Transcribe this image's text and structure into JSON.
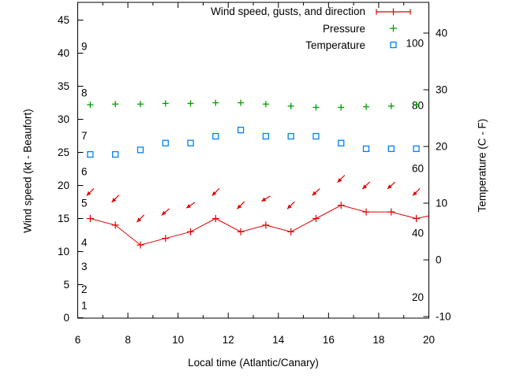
{
  "colors": {
    "wind": "#e00000",
    "pressure": "#00a000",
    "temperature": "#0080ff",
    "axis": "#000000",
    "background": "#ffffff"
  },
  "legend": {
    "items": [
      {
        "label": "Wind speed, gusts, and direction",
        "series": "wind",
        "marker": "errorbar-line"
      },
      {
        "label": "Pressure",
        "series": "pressure",
        "marker": "plus"
      },
      {
        "label": "Temperature",
        "series": "temperature",
        "marker": "square"
      }
    ]
  },
  "axes": {
    "x": {
      "label": "Local time (Atlantic/Canary)",
      "range": [
        6,
        20
      ],
      "major_ticks": [
        6,
        8,
        10,
        12,
        14,
        16,
        18,
        20
      ],
      "minor_ticks": [
        7,
        9,
        11,
        13,
        15,
        17,
        19
      ],
      "tick_labels": [
        "6",
        "8",
        "10",
        "12",
        "14",
        "16",
        "18",
        "20"
      ]
    },
    "y_left": {
      "label": "Wind speed (kt - Beaufort)",
      "major_ticks": [
        0,
        5,
        10,
        15,
        20,
        25,
        30,
        35,
        40,
        45
      ],
      "tick_labels": [
        "0",
        "5",
        "10",
        "15",
        "20",
        "25",
        "30",
        "35",
        "40",
        "45"
      ],
      "beaufort_inner_labels": [
        {
          "text": "1",
          "kt": 1.85
        },
        {
          "text": "2",
          "kt": 4.3
        },
        {
          "text": "3",
          "kt": 7.75
        },
        {
          "text": "4",
          "kt": 11.35
        },
        {
          "text": "5",
          "kt": 17.3
        },
        {
          "text": "6",
          "kt": 22.1
        },
        {
          "text": "7",
          "kt": 27.5
        },
        {
          "text": "8",
          "kt": 34.0
        },
        {
          "text": "9",
          "kt": 41.0
        }
      ]
    },
    "y_right": {
      "label": "Temperature (C - F)",
      "major_ticks_c": [
        -10,
        0,
        10,
        20,
        30,
        40
      ],
      "tick_labels": [
        "-10",
        "0",
        "10",
        "20",
        "30",
        "40"
      ],
      "fahrenheit_inner_labels": [
        {
          "text": "20",
          "c": -6.6
        },
        {
          "text": "40",
          "c": 4.7
        },
        {
          "text": "60",
          "c": 16.1
        },
        {
          "text": "80",
          "c": 27.2
        },
        {
          "text": "100",
          "c": 38.2
        }
      ]
    }
  },
  "chart_data": {
    "type": "line",
    "title": "",
    "xlabel": "Local time (Atlantic/Canary)",
    "ylabel_left": "Wind speed (kt - Beaufort)",
    "ylabel_right": "Temperature (C - F)",
    "x_range": [
      6,
      20
    ],
    "y_left_range_kt": [
      0,
      47.7
    ],
    "y_right_range_c": [
      -10.3,
      45.4
    ],
    "grid": false,
    "legend_position": "top-right-inside",
    "x": [
      6.5,
      7.5,
      8.5,
      9.5,
      10.5,
      11.5,
      12.5,
      13.5,
      14.5,
      15.5,
      16.5,
      17.5,
      18.5,
      19.5
    ],
    "series": [
      {
        "name": "Wind speed (kt)",
        "axis": "left",
        "style": "line-plus-markers",
        "values": [
          15,
          14,
          11,
          12,
          13,
          15,
          13,
          14,
          13,
          15,
          17,
          16,
          16,
          15
        ],
        "line_tail": {
          "x": 20,
          "value": 15.4
        }
      },
      {
        "name": "Wind gusts (kt, arrow positions)",
        "axis": "left",
        "style": "direction-arrows",
        "values": [
          19,
          18,
          15,
          16,
          17,
          19,
          17,
          18,
          17,
          19,
          21,
          20,
          20,
          19
        ]
      },
      {
        "name": "Wind direction (compass deg, from)",
        "values": [
          45,
          45,
          45,
          50,
          57,
          45,
          45,
          58,
          45,
          48,
          45,
          45,
          48,
          45
        ]
      },
      {
        "name": "Pressure (scale not shown, plotted level on left axis)",
        "axis": "left",
        "style": "plus-markers",
        "values": [
          32.2,
          32.3,
          32.3,
          32.4,
          32.4,
          32.5,
          32.5,
          32.3,
          32.0,
          31.8,
          31.8,
          31.9,
          32.0,
          32.2
        ]
      },
      {
        "name": "Temperature (C)",
        "axis": "right",
        "style": "open-square-markers",
        "values": [
          18.6,
          18.6,
          19.4,
          20.6,
          20.6,
          21.8,
          22.9,
          21.8,
          21.8,
          21.8,
          20.6,
          19.6,
          19.6,
          19.6
        ]
      }
    ]
  }
}
